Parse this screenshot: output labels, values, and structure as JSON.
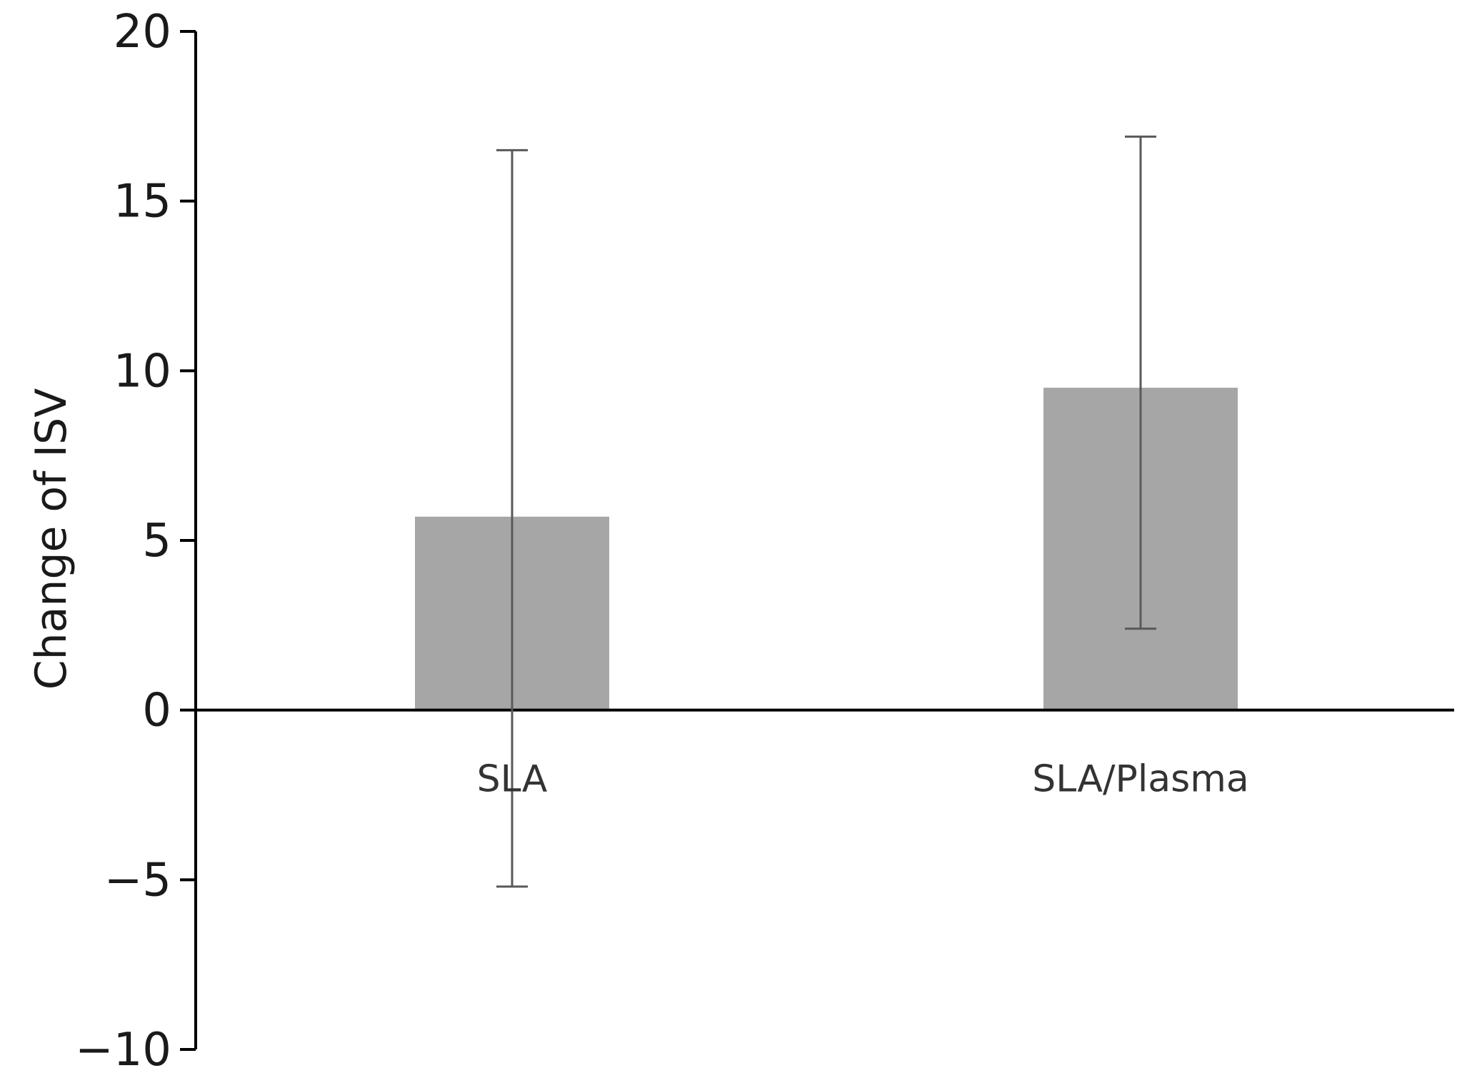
{
  "chart_data": {
    "type": "bar",
    "categories": [
      "SLA",
      "SLA/Plasma"
    ],
    "values": [
      5.7,
      9.5
    ],
    "error_bars": [
      {
        "lower": -5.2,
        "upper": 16.5
      },
      {
        "lower": 2.4,
        "upper": 16.9
      }
    ],
    "title": "",
    "xlabel": "",
    "ylabel": "Change of ISV",
    "ylim": [
      -10,
      20
    ],
    "yticks": [
      20,
      15,
      10,
      5,
      0,
      -5,
      -10
    ],
    "ytick_labels": [
      "20",
      "15",
      "10",
      "5",
      "0",
      "−5",
      "−10"
    ],
    "grid": false,
    "legend": "none",
    "bar_color": "#a6a6a6",
    "error_bar_color": "#595959",
    "axis_color": "#000000"
  }
}
